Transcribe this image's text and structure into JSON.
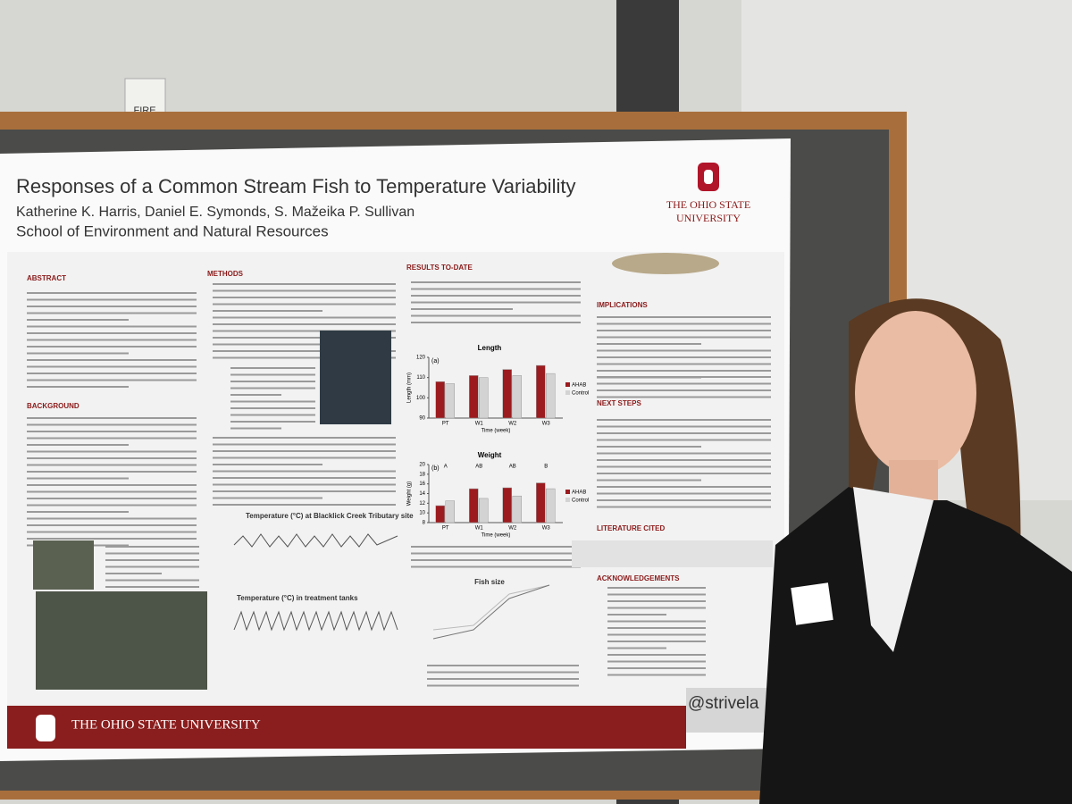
{
  "sign": "FIRE",
  "poster": {
    "title": "Responses of a Common Stream Fish to Temperature Variability",
    "authors": "Katherine K. Harris, Daniel E. Symonds, S. Mažeika P. Sullivan",
    "affiliation": "School of Environment and Natural Resources",
    "logo": [
      "THE OHIO STATE",
      "UNIVERSITY"
    ],
    "sections": [
      "ABSTRACT",
      "BACKGROUND",
      "METHODS",
      "RESULTS TO-DATE",
      "IMPLICATIONS",
      "NEXT STEPS",
      "LITERATURE CITED",
      "ACKNOWLEDGEMENTS"
    ],
    "figure_titles": [
      "Temperature (°C) at Blacklick Creek Tributary site",
      "Temperature (°C) in treatment tanks",
      "Fish size"
    ],
    "length_chart": {
      "title": "Length",
      "panel": "(a)",
      "ylabel": "Length (mm)",
      "xlabel": "Time (week)",
      "categories": [
        "PT",
        "W1",
        "W2",
        "W3"
      ],
      "ylim": [
        90,
        120
      ],
      "yticks": [
        90,
        100,
        110,
        120
      ],
      "series": [
        {
          "name": "AHAB",
          "color": "#9b1b1e",
          "values": [
            108,
            111,
            114,
            116
          ]
        },
        {
          "name": "Control",
          "color": "#d3d3d3",
          "values": [
            107,
            110,
            111,
            112
          ]
        }
      ]
    },
    "weight_chart": {
      "title": "Weight",
      "panel": "(b)",
      "ylabel": "Weight (g)",
      "xlabel": "Time (week)",
      "categories": [
        "PT",
        "W1",
        "W2",
        "W3"
      ],
      "ylim": [
        8,
        20
      ],
      "yticks": [
        8,
        10,
        12,
        14,
        16,
        18,
        20
      ],
      "letters": [
        "A",
        "AB",
        "AB",
        "B"
      ],
      "series": [
        {
          "name": "AHAB",
          "color": "#9b1b1e",
          "values": [
            11.5,
            15,
            15.2,
            16.2
          ]
        },
        {
          "name": "Control",
          "color": "#d3d3d3",
          "values": [
            12.5,
            13,
            13.5,
            15
          ]
        }
      ]
    },
    "footer": "THE OHIO STATE UNIVERSITY",
    "handle": "@strivela"
  }
}
